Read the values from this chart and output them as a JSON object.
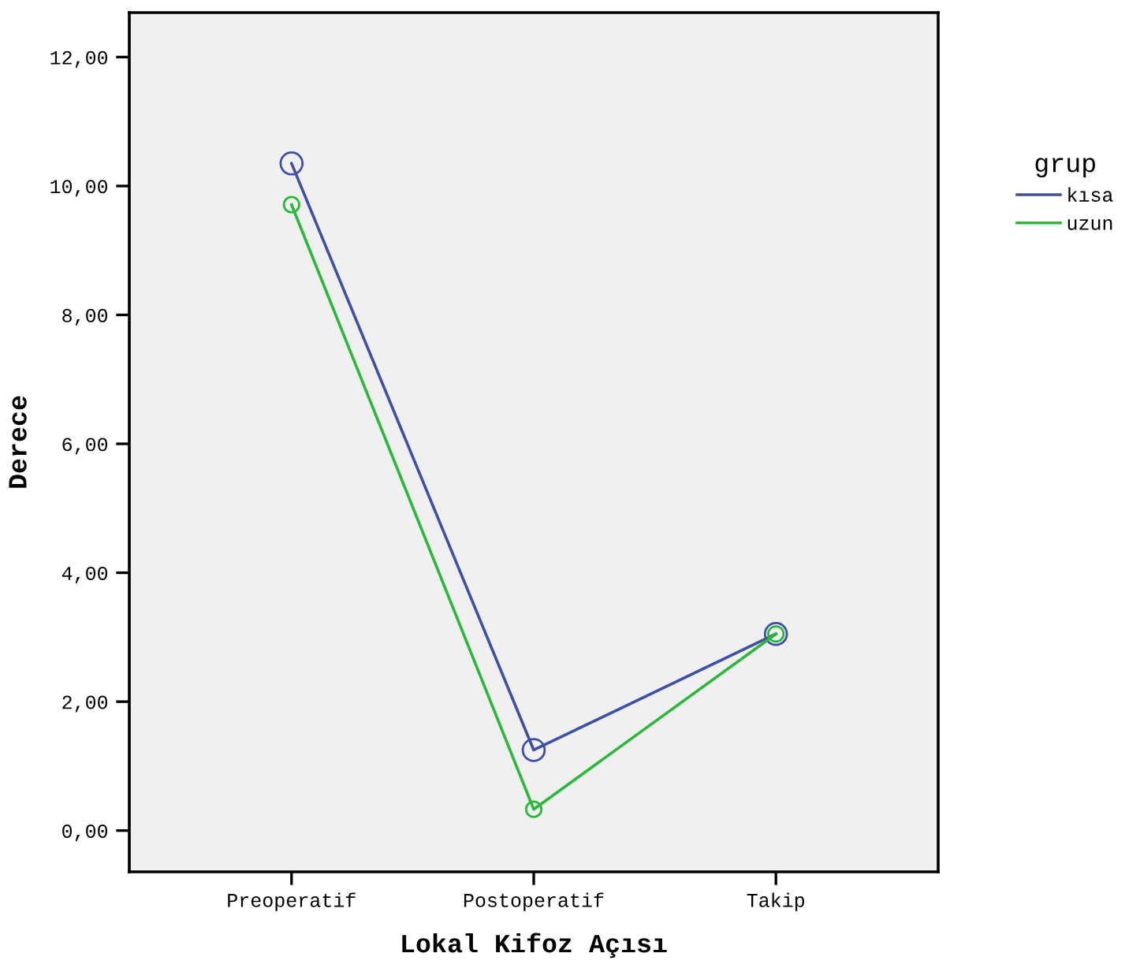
{
  "chart_data": {
    "type": "line",
    "xlabel": "Lokal Kifoz Açısı",
    "ylabel": "Derece",
    "legend_title": "grup",
    "categories": [
      "Preoperatif",
      "Postoperatif",
      "Takip"
    ],
    "series": [
      {
        "name": "kısa",
        "color": "#3e4fa8",
        "values": [
          10.35,
          1.25,
          3.05
        ]
      },
      {
        "name": "uzun",
        "color": "#2ab83a",
        "values": [
          9.71,
          0.33,
          3.05
        ]
      }
    ],
    "ylim": [
      -0.64,
      12.69
    ],
    "yticks": [
      {
        "value": 0,
        "label": "0,00"
      },
      {
        "value": 2,
        "label": "2,00"
      },
      {
        "value": 4,
        "label": "4,00"
      },
      {
        "value": 6,
        "label": "6,00"
      },
      {
        "value": 8,
        "label": "8,00"
      },
      {
        "value": 10,
        "label": "10,00"
      },
      {
        "value": 12,
        "label": "12,00"
      }
    ],
    "marker": "circle",
    "line_style": "solid",
    "legend": "right",
    "grid": false
  }
}
